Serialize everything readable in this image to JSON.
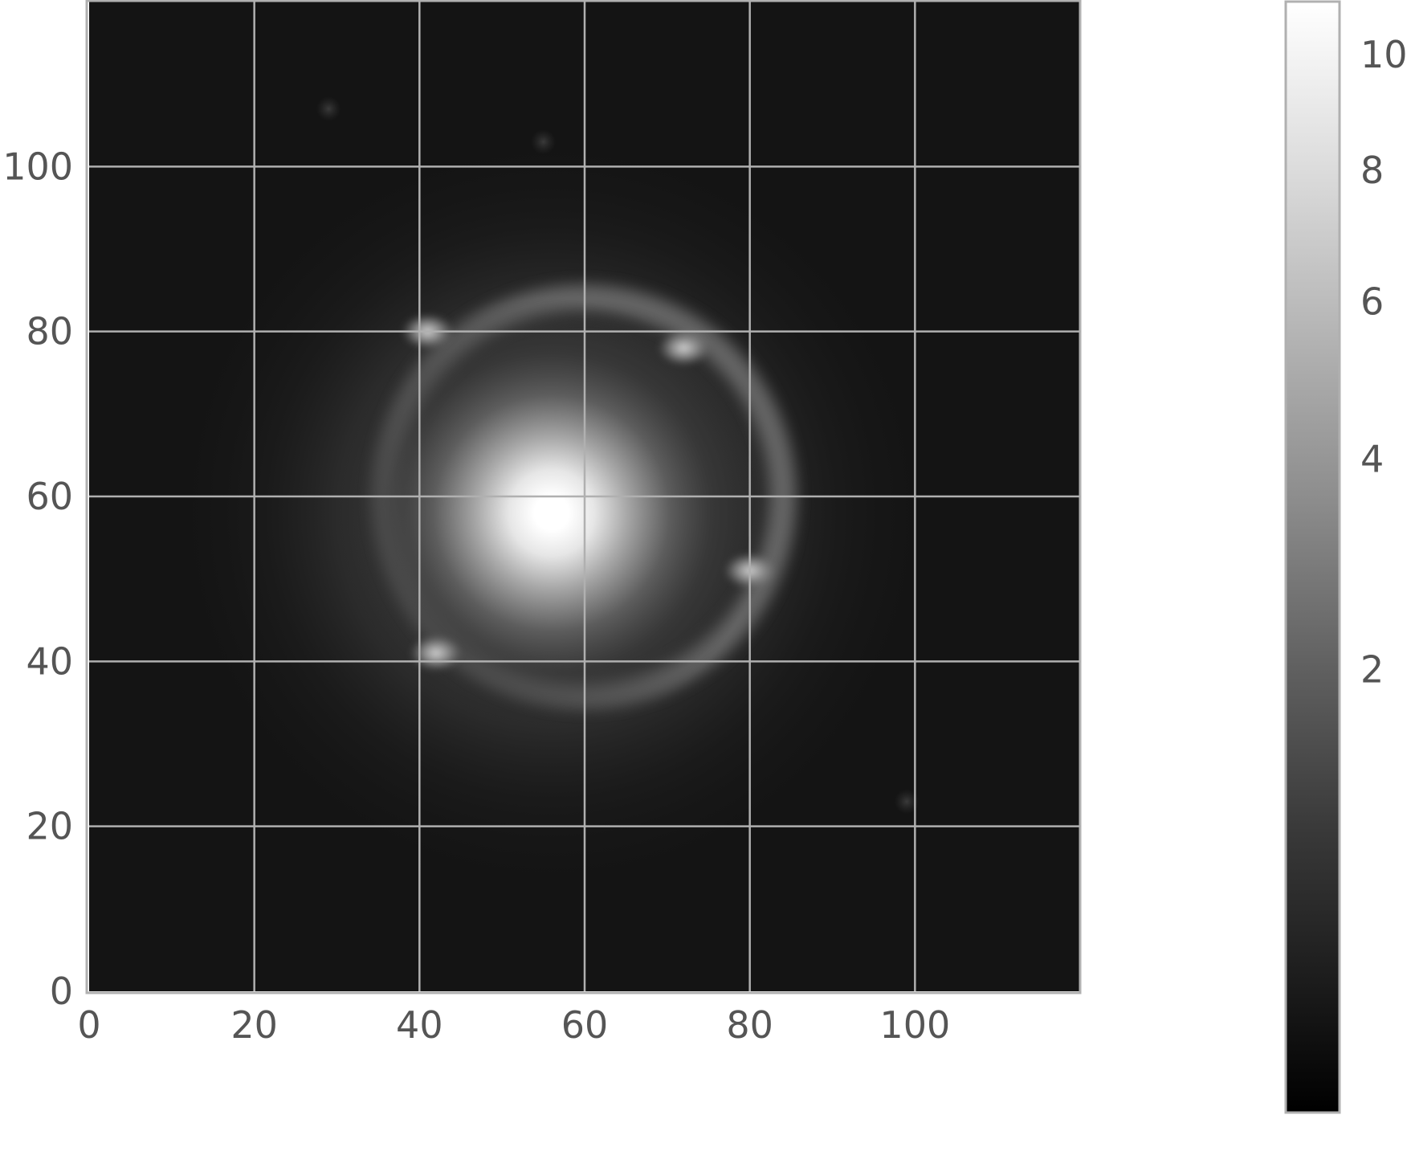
{
  "chart_data": {
    "type": "heatmap",
    "title": "",
    "xlabel": "",
    "ylabel": "",
    "colormap": "gray",
    "xlim": [
      0,
      120
    ],
    "ylim": [
      0,
      120
    ],
    "x_ticks": [
      0,
      20,
      40,
      60,
      80,
      100
    ],
    "x_tick_labels": [
      "0",
      "20",
      "40",
      "60",
      "80",
      "100"
    ],
    "y_ticks": [
      0,
      20,
      40,
      60,
      80,
      100
    ],
    "y_tick_labels": [
      "0",
      "20",
      "40",
      "60",
      "80",
      "100"
    ],
    "grid": true,
    "colorbar": {
      "range": [
        0.3,
        11
      ],
      "scale": "nonlinear",
      "ticks": [
        2,
        4,
        6,
        8,
        10
      ],
      "tick_labels": [
        "2",
        "4",
        "6",
        "8",
        "10"
      ]
    },
    "image_description_values": {
      "lens_center": [
        56,
        58
      ],
      "lens_peak": 11,
      "background": 0.4,
      "ring_center": [
        60,
        60
      ],
      "ring_radius": 24,
      "ring_knots": [
        {
          "x": 41,
          "y": 80,
          "value": 5
        },
        {
          "x": 72,
          "y": 78,
          "value": 5
        },
        {
          "x": 80,
          "y": 51,
          "value": 5
        },
        {
          "x": 42,
          "y": 41,
          "value": 4.5
        }
      ],
      "faint_sources": [
        {
          "x": 29,
          "y": 107
        },
        {
          "x": 55,
          "y": 103
        },
        {
          "x": 99,
          "y": 23
        }
      ]
    }
  }
}
